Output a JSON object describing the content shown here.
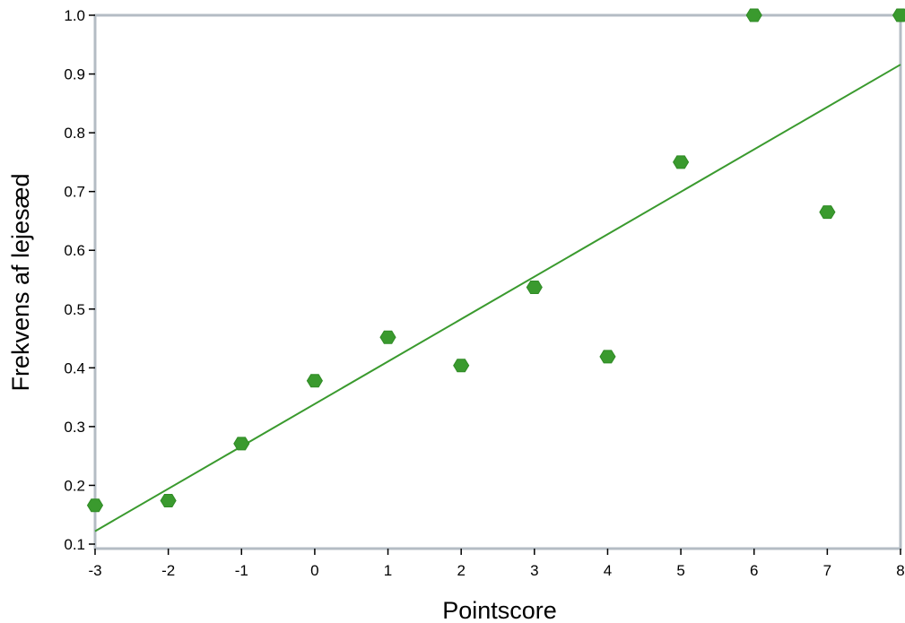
{
  "chart_data": {
    "type": "scatter",
    "xlabel": "Pointscore",
    "ylabel": "Frekvens af lejesæd",
    "xlim": [
      -3,
      8
    ],
    "ylim": [
      0.1,
      1.0
    ],
    "x_ticks": [
      -3,
      -2,
      -1,
      0,
      1,
      2,
      3,
      4,
      5,
      6,
      7,
      8
    ],
    "y_ticks": [
      0.1,
      0.2,
      0.3,
      0.4,
      0.5,
      0.6,
      0.7,
      0.8,
      0.9,
      1.0
    ],
    "x_tick_labels": [
      "-3",
      "-2",
      "-1",
      "0",
      "1",
      "2",
      "3",
      "4",
      "5",
      "6",
      "7",
      "8"
    ],
    "y_tick_labels": [
      "0.1",
      "0.2",
      "0.3",
      "0.4",
      "0.5",
      "0.6",
      "0.7",
      "0.8",
      "0.9",
      "1.0"
    ],
    "grid": false,
    "color": "#3a9a2e",
    "points": [
      {
        "x": -3,
        "y": 0.166
      },
      {
        "x": -2,
        "y": 0.174
      },
      {
        "x": -1,
        "y": 0.271
      },
      {
        "x": 0,
        "y": 0.378
      },
      {
        "x": 1,
        "y": 0.452
      },
      {
        "x": 2,
        "y": 0.404
      },
      {
        "x": 3,
        "y": 0.537
      },
      {
        "x": 4,
        "y": 0.419
      },
      {
        "x": 5,
        "y": 0.75
      },
      {
        "x": 6,
        "y": 1.0
      },
      {
        "x": 7,
        "y": 0.665
      },
      {
        "x": 8,
        "y": 1.0
      }
    ],
    "trendline": {
      "x": [
        -3,
        8
      ],
      "y": [
        0.122,
        0.916
      ]
    }
  }
}
